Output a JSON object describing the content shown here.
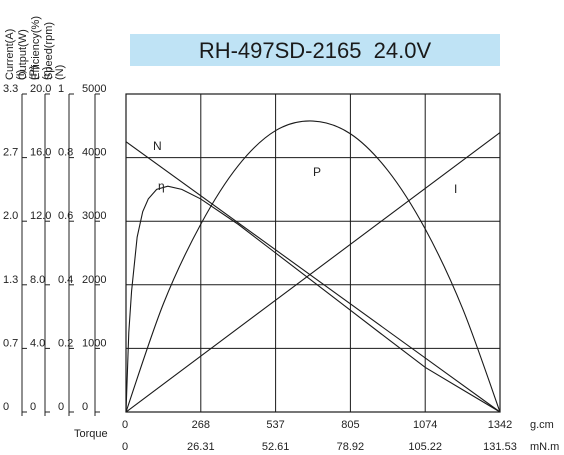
{
  "chart_data": {
    "type": "line",
    "title": "RH-497SD-2165  24.0V",
    "x_axes": [
      {
        "name": "Torque",
        "unit": "g.cm",
        "ticks": [
          "0",
          "268",
          "537",
          "805",
          "1074",
          "1342"
        ],
        "range": [
          0,
          1342
        ]
      },
      {
        "name": "",
        "unit": "mN.m",
        "ticks": [
          "0",
          "26.31",
          "52.61",
          "78.92",
          "105.22",
          "131.53"
        ],
        "range": [
          0,
          131.53
        ]
      }
    ],
    "y_axes": [
      {
        "key": "current",
        "label": "Current(A)",
        "symbol": "(I)",
        "ticks": [
          "0",
          "0.7",
          "1.3",
          "2.0",
          "2.7",
          "3.3"
        ],
        "range": [
          0,
          3.3
        ]
      },
      {
        "key": "output",
        "label": "Output(W)",
        "symbol": "(P)",
        "ticks": [
          "0",
          "4.0",
          "8.0",
          "12.0",
          "16.0",
          "20.0"
        ],
        "range": [
          0,
          20.0
        ]
      },
      {
        "key": "efficiency",
        "label": "Efficiency(%)",
        "symbol": "(η)",
        "ticks": [
          "0",
          "0.2",
          "0.4",
          "0.6",
          "0.8",
          "1"
        ],
        "range": [
          0,
          1
        ]
      },
      {
        "key": "speed",
        "label": "Speed(rpm)",
        "symbol": "(N)",
        "ticks": [
          "0",
          "1000",
          "2000",
          "3000",
          "4000",
          "5000"
        ],
        "range": [
          0,
          5000
        ]
      }
    ],
    "grid": true,
    "series": [
      {
        "name": "N",
        "axis": "speed",
        "x": [
          0,
          1342
        ],
        "y": [
          4250,
          0
        ]
      },
      {
        "name": "I",
        "axis": "current",
        "x": [
          0,
          1342
        ],
        "y": [
          0,
          2.9
        ]
      },
      {
        "name": "P",
        "axis": "output",
        "x": [
          0,
          134,
          268,
          403,
          537,
          671,
          805,
          939,
          1074,
          1208,
          1342
        ],
        "y": [
          0,
          6.8,
          11.8,
          15.5,
          17.7,
          18.3,
          17.5,
          15.2,
          11.5,
          6.5,
          0
        ]
      },
      {
        "name": "η",
        "axis": "efficiency",
        "x": [
          0,
          10,
          20,
          40,
          60,
          80,
          110,
          150,
          200,
          268,
          403,
          537,
          671,
          805,
          939,
          1074,
          1208,
          1342
        ],
        "y": [
          0,
          0.25,
          0.38,
          0.55,
          0.63,
          0.67,
          0.7,
          0.71,
          0.7,
          0.67,
          0.59,
          0.5,
          0.41,
          0.32,
          0.23,
          0.14,
          0.07,
          0
        ]
      }
    ]
  }
}
